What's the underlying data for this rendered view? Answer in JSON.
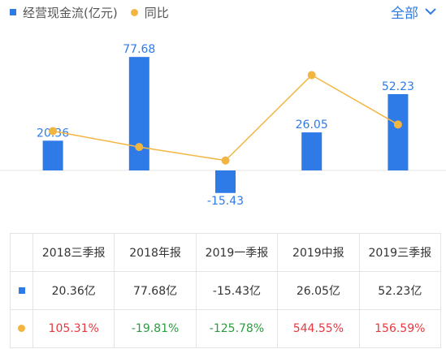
{
  "legend": {
    "bar_label": "经营现金流(亿元)",
    "line_label": "同比"
  },
  "filter": {
    "label": "全部",
    "icon": "chevron-down-icon"
  },
  "colors": {
    "bar": "#2e7be8",
    "line": "#f2b640",
    "positive": "#e8373f",
    "negative": "#2a9d3f",
    "accent": "#2e7be8"
  },
  "chart_data": {
    "type": "bar",
    "categories": [
      "2018三季报",
      "2018年报",
      "2019一季报",
      "2019中报",
      "2019三季报"
    ],
    "series": [
      {
        "name": "经营现金流(亿元)",
        "type": "bar",
        "values": [
          20.36,
          77.68,
          -15.43,
          26.05,
          52.23
        ],
        "labels": [
          "20.36",
          "77.68",
          "-15.43",
          "26.05",
          "52.23"
        ]
      },
      {
        "name": "同比",
        "type": "line",
        "values": [
          105.31,
          -19.81,
          -125.78,
          544.55,
          156.59
        ]
      }
    ],
    "legend_position": "top-left",
    "grid": false
  },
  "table": {
    "headers": [
      "2018三季报",
      "2018年报",
      "2019一季报",
      "2019中报",
      "2019三季报"
    ],
    "rows": [
      {
        "marker": "square",
        "cells": [
          "20.36亿",
          "77.68亿",
          "-15.43亿",
          "26.05亿",
          "52.23亿"
        ]
      },
      {
        "marker": "circle",
        "cells": [
          "105.31%",
          "-19.81%",
          "-125.78%",
          "544.55%",
          "156.59%"
        ]
      }
    ]
  }
}
